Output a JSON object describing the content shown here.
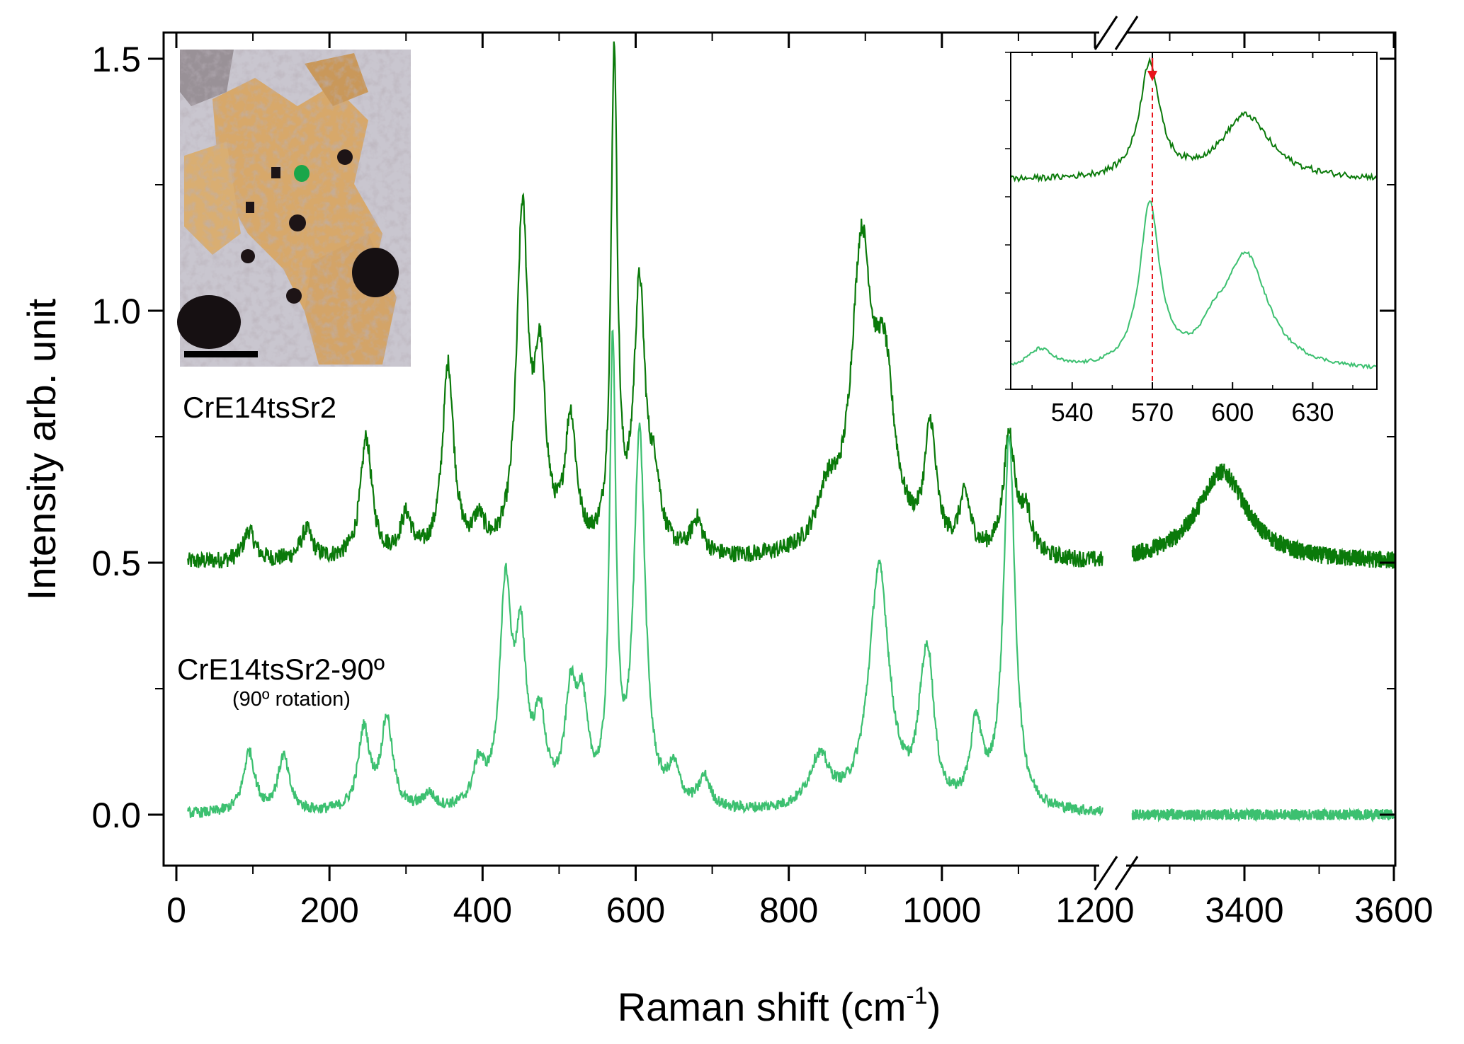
{
  "chart_data": {
    "type": "line",
    "title": "",
    "xlabel": "Raman shift (cm",
    "xlabel_sup": "-1",
    "xlabel_close": ")",
    "ylabel": "Intensity arb. unit",
    "xlim_segments": [
      [
        0,
        1200
      ],
      [
        3250,
        3600
      ]
    ],
    "ylim": [
      -0.1,
      1.55
    ],
    "x_ticks": [
      0,
      200,
      400,
      600,
      800,
      1000,
      1200,
      3400,
      3600
    ],
    "x_tick_labels": [
      "0",
      "200",
      "400",
      "600",
      "800",
      "1000",
      "1200",
      "3400",
      "3600"
    ],
    "y_ticks": [
      0.0,
      0.5,
      1.0,
      1.5
    ],
    "y_tick_labels": [
      "0.0",
      "0.5",
      "1.0",
      "1.5"
    ],
    "axis_break": true,
    "series": [
      {
        "name": "CrE14tsSr2",
        "color": "#0a7a0a",
        "offset": 0.5,
        "x_range": [
          [
            15,
            1210
          ],
          [
            3250,
            3600
          ]
        ],
        "peaks_cm1_height": [
          [
            95,
            0.06
          ],
          [
            170,
            0.06
          ],
          [
            248,
            0.24
          ],
          [
            300,
            0.08
          ],
          [
            355,
            0.38
          ],
          [
            395,
            0.06
          ],
          [
            452,
            0.66
          ],
          [
            475,
            0.35
          ],
          [
            515,
            0.26
          ],
          [
            572,
            0.98
          ],
          [
            605,
            0.52
          ],
          [
            625,
            0.12
          ],
          [
            680,
            0.07
          ],
          [
            850,
            0.1
          ],
          [
            895,
            0.58
          ],
          [
            925,
            0.32
          ],
          [
            985,
            0.24
          ],
          [
            1030,
            0.11
          ],
          [
            1088,
            0.24
          ],
          [
            1110,
            0.08
          ],
          [
            3370,
            0.18
          ]
        ]
      },
      {
        "name": "CrE14tsSr2-90º",
        "color": "#3cc070",
        "offset": 0.0,
        "x_range": [
          [
            15,
            1210
          ],
          [
            3250,
            3600
          ]
        ],
        "peaks_cm1_height": [
          [
            95,
            0.12
          ],
          [
            140,
            0.11
          ],
          [
            245,
            0.16
          ],
          [
            275,
            0.18
          ],
          [
            330,
            0.03
          ],
          [
            395,
            0.08
          ],
          [
            430,
            0.42
          ],
          [
            450,
            0.3
          ],
          [
            475,
            0.16
          ],
          [
            515,
            0.2
          ],
          [
            530,
            0.18
          ],
          [
            570,
            0.9
          ],
          [
            605,
            0.74
          ],
          [
            650,
            0.07
          ],
          [
            690,
            0.06
          ],
          [
            840,
            0.1
          ],
          [
            918,
            0.48
          ],
          [
            975,
            0.13
          ],
          [
            983,
            0.22
          ],
          [
            1045,
            0.16
          ],
          [
            1088,
            0.74
          ]
        ]
      }
    ],
    "inset": {
      "xlim": [
        517,
        654
      ],
      "x_ticks": [
        540,
        570,
        600,
        630
      ],
      "x_tick_labels": [
        "540",
        "570",
        "600",
        "630"
      ],
      "marker_x": 570,
      "marker_color": "#e8141c",
      "series": [
        {
          "name": "CrE14tsSr2",
          "color": "#0a7a0a",
          "baseline": 0.62,
          "peaks": [
            [
              569,
              0.34,
              4.5
            ],
            [
              605,
              0.19,
              11
            ]
          ]
        },
        {
          "name": "CrE14tsSr2-90º",
          "color": "#3cc070",
          "baseline": 0.05,
          "peaks": [
            [
              528,
              0.06,
              6
            ],
            [
              569,
              0.48,
              4.5
            ],
            [
              593,
              0.06,
              5
            ],
            [
              605,
              0.34,
              10
            ]
          ]
        }
      ]
    },
    "annotations": {
      "sample_label": "CrE14tsSr2",
      "rotated_label": "CrE14tsSr2-90º",
      "rotated_sublabel": "(90º rotation)"
    },
    "micrograph": {
      "description_visible": "optical micrograph with green measurement spot and scale bar",
      "spot_color": "#1aa64a"
    }
  }
}
